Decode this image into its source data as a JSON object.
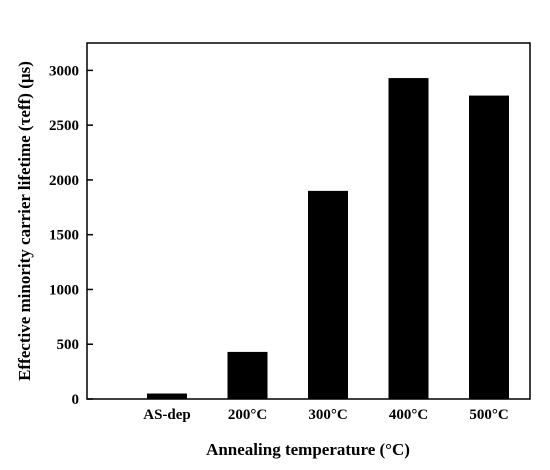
{
  "chart_data": {
    "type": "bar",
    "categories": [
      "AS-dep",
      "200°C",
      "300°C",
      "400°C",
      "500°C"
    ],
    "values": [
      50,
      430,
      1900,
      2930,
      2770
    ],
    "xlabel": "Annealing temperature (°C)",
    "ylabel": "Effective minority carrier lifetime (τeff) (µs)",
    "ylim": [
      0,
      3250
    ],
    "yticks": [
      0,
      500,
      1000,
      1500,
      2000,
      2500,
      3000
    ],
    "grid": false,
    "legend": "none",
    "colors": {
      "bar": "#000000",
      "axis": "#000000",
      "background": "#ffffff"
    }
  }
}
